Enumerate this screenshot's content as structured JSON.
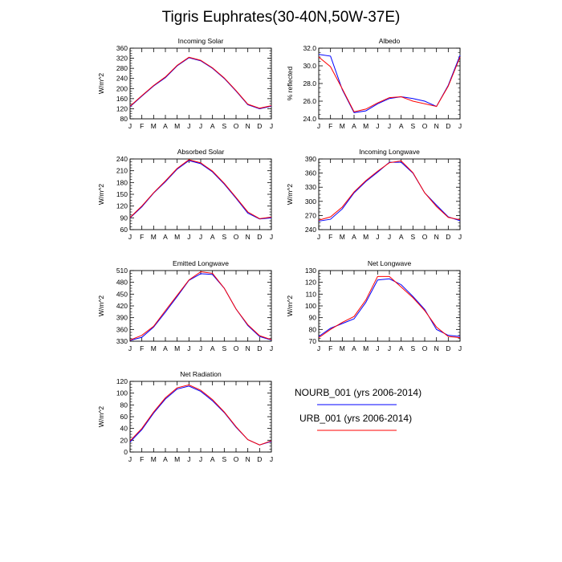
{
  "title": "Tigris Euphrates(30-40N,50W-37E)",
  "legend": {
    "entries": [
      {
        "label": "NOURB_001 (yrs 2006-2014)",
        "color": "#0000ff"
      },
      {
        "label": "URB_001 (yrs 2006-2014)",
        "color": "#ff0000"
      }
    ]
  },
  "colors": {
    "NOURB_001": "#0000ff",
    "URB_001": "#ff0000"
  },
  "chart_data": [
    {
      "type": "line",
      "title": "Incoming Solar",
      "ylabel": "W/m^2",
      "categories": [
        "J",
        "F",
        "M",
        "A",
        "M",
        "J",
        "J",
        "A",
        "S",
        "O",
        "N",
        "D",
        "J"
      ],
      "ylim": [
        80,
        360
      ],
      "yticks": [
        80,
        120,
        160,
        200,
        240,
        280,
        320,
        360
      ],
      "ytick_labels": [
        "80",
        "120",
        "160",
        "200",
        "240",
        "280",
        "320",
        "360"
      ],
      "series": [
        {
          "name": "NOURB_001",
          "values": [
            128,
            170,
            210,
            243,
            290,
            322,
            310,
            280,
            240,
            190,
            136,
            120,
            130
          ]
        },
        {
          "name": "URB_001",
          "values": [
            130,
            172,
            212,
            246,
            292,
            324,
            312,
            282,
            242,
            192,
            138,
            122,
            132
          ]
        }
      ]
    },
    {
      "type": "line",
      "title": "Albedo",
      "ylabel": "% reflected",
      "categories": [
        "J",
        "F",
        "M",
        "A",
        "M",
        "J",
        "J",
        "A",
        "S",
        "O",
        "N",
        "D",
        "J"
      ],
      "ylim": [
        24,
        32
      ],
      "yticks": [
        24,
        26,
        28,
        30,
        32
      ],
      "ytick_labels": [
        "24.0",
        "26.0",
        "28.0",
        "30.0",
        "32.0"
      ],
      "series": [
        {
          "name": "NOURB_001",
          "values": [
            31.3,
            31.1,
            27.3,
            24.7,
            24.9,
            25.7,
            26.3,
            26.5,
            26.3,
            26.0,
            25.4,
            27.8,
            31.2
          ]
        },
        {
          "name": "URB_001",
          "values": [
            31.0,
            29.9,
            27.4,
            24.8,
            25.1,
            25.8,
            26.4,
            26.5,
            26.0,
            25.7,
            25.4,
            27.7,
            31.0
          ]
        }
      ]
    },
    {
      "type": "line",
      "title": "Absorbed Solar",
      "ylabel": "W/m^2",
      "categories": [
        "J",
        "F",
        "M",
        "A",
        "M",
        "J",
        "J",
        "A",
        "S",
        "O",
        "N",
        "D",
        "J"
      ],
      "ylim": [
        60,
        240
      ],
      "yticks": [
        60,
        90,
        120,
        150,
        180,
        210,
        240
      ],
      "ytick_labels": [
        "60",
        "90",
        "120",
        "150",
        "180",
        "210",
        "240"
      ],
      "series": [
        {
          "name": "NOURB_001",
          "values": [
            90,
            118,
            153,
            182,
            214,
            236,
            228,
            207,
            176,
            140,
            102,
            87,
            90
          ]
        },
        {
          "name": "URB_001",
          "values": [
            91,
            120,
            154,
            184,
            216,
            238,
            230,
            209,
            178,
            142,
            105,
            88,
            92
          ]
        }
      ]
    },
    {
      "type": "line",
      "title": "Incoming Longwave",
      "ylabel": "W/m^2",
      "categories": [
        "J",
        "F",
        "M",
        "A",
        "M",
        "J",
        "J",
        "A",
        "S",
        "O",
        "N",
        "D",
        "J"
      ],
      "ylim": [
        240,
        390
      ],
      "yticks": [
        240,
        270,
        300,
        330,
        360,
        390
      ],
      "ytick_labels": [
        "240",
        "270",
        "300",
        "330",
        "360",
        "390"
      ],
      "series": [
        {
          "name": "NOURB_001",
          "values": [
            258,
            262,
            284,
            318,
            342,
            362,
            383,
            383,
            360,
            318,
            292,
            267,
            259
          ]
        },
        {
          "name": "URB_001",
          "values": [
            260,
            267,
            288,
            320,
            344,
            364,
            382,
            386,
            361,
            318,
            289,
            266,
            261
          ]
        }
      ]
    },
    {
      "type": "line",
      "title": "Emitted Longwave",
      "ylabel": "W/m^2",
      "categories": [
        "J",
        "F",
        "M",
        "A",
        "M",
        "J",
        "J",
        "A",
        "S",
        "O",
        "N",
        "D",
        "J"
      ],
      "ylim": [
        330,
        510
      ],
      "yticks": [
        330,
        360,
        390,
        420,
        450,
        480,
        510
      ],
      "ytick_labels": [
        "330",
        "360",
        "390",
        "420",
        "450",
        "480",
        "510"
      ],
      "series": [
        {
          "name": "NOURB_001",
          "values": [
            332,
            340,
            366,
            404,
            444,
            485,
            502,
            500,
            465,
            412,
            370,
            342,
            333
          ]
        },
        {
          "name": "URB_001",
          "values": [
            333,
            345,
            368,
            408,
            447,
            486,
            507,
            503,
            465,
            412,
            372,
            344,
            334
          ]
        }
      ]
    },
    {
      "type": "line",
      "title": "Net Longwave",
      "ylabel": "W/m^2",
      "categories": [
        "J",
        "F",
        "M",
        "A",
        "M",
        "J",
        "J",
        "A",
        "S",
        "O",
        "N",
        "D",
        "J"
      ],
      "ylim": [
        70,
        130
      ],
      "yticks": [
        70,
        80,
        90,
        100,
        110,
        120,
        130
      ],
      "ytick_labels": [
        "70",
        "80",
        "90",
        "100",
        "110",
        "120",
        "130"
      ],
      "series": [
        {
          "name": "NOURB_001",
          "values": [
            74,
            81,
            85,
            89,
            103,
            122,
            123,
            118,
            108,
            97,
            80,
            75,
            74
          ]
        },
        {
          "name": "URB_001",
          "values": [
            73,
            80,
            86,
            91,
            105,
            125,
            125,
            116,
            107,
            96,
            82,
            74,
            73
          ]
        }
      ]
    },
    {
      "type": "line",
      "title": "Net Radiation",
      "ylabel": "W/m^2",
      "categories": [
        "J",
        "F",
        "M",
        "A",
        "M",
        "J",
        "J",
        "A",
        "S",
        "O",
        "N",
        "D",
        "J"
      ],
      "ylim": [
        0,
        120
      ],
      "yticks": [
        0,
        20,
        40,
        60,
        80,
        100,
        120
      ],
      "ytick_labels": [
        "0",
        "20",
        "40",
        "60",
        "80",
        "100",
        "120"
      ],
      "series": [
        {
          "name": "NOURB_001",
          "values": [
            17,
            38,
            66,
            90,
            107,
            112,
            103,
            87,
            67,
            42,
            21,
            12,
            18
          ]
        },
        {
          "name": "URB_001",
          "values": [
            19,
            40,
            68,
            92,
            109,
            114,
            105,
            89,
            68,
            43,
            21,
            12,
            19
          ]
        }
      ]
    }
  ]
}
